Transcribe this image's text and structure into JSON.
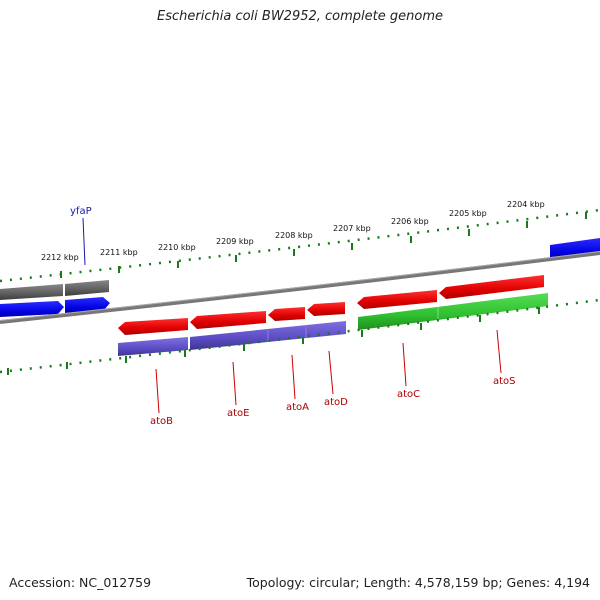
{
  "title": "Escherichia coli BW2952, complete genome",
  "accession": "Accession: NC_012759",
  "topology": "Topology: circular; Length: 4,578,159 bp; Genes: 4,194",
  "kbp_labels": [
    "2212 kbp",
    "2211 kbp",
    "2210 kbp",
    "2209 kbp",
    "2208 kbp",
    "2207 kbp",
    "2206 kbp",
    "2205 kbp",
    "2204 kbp"
  ],
  "genes": {
    "yfaP": "yfaP",
    "atoB": "atoB",
    "atoE": "atoE",
    "atoA": "atoA",
    "atoD": "atoD",
    "atoC": "atoC",
    "atoS": "atoS"
  },
  "colors": {
    "red": "#ee0000",
    "blue": "#0000ee",
    "green": "#33cc33",
    "purple": "#6a5acd",
    "gray": "#666666",
    "tick": "#1a7a1a"
  }
}
